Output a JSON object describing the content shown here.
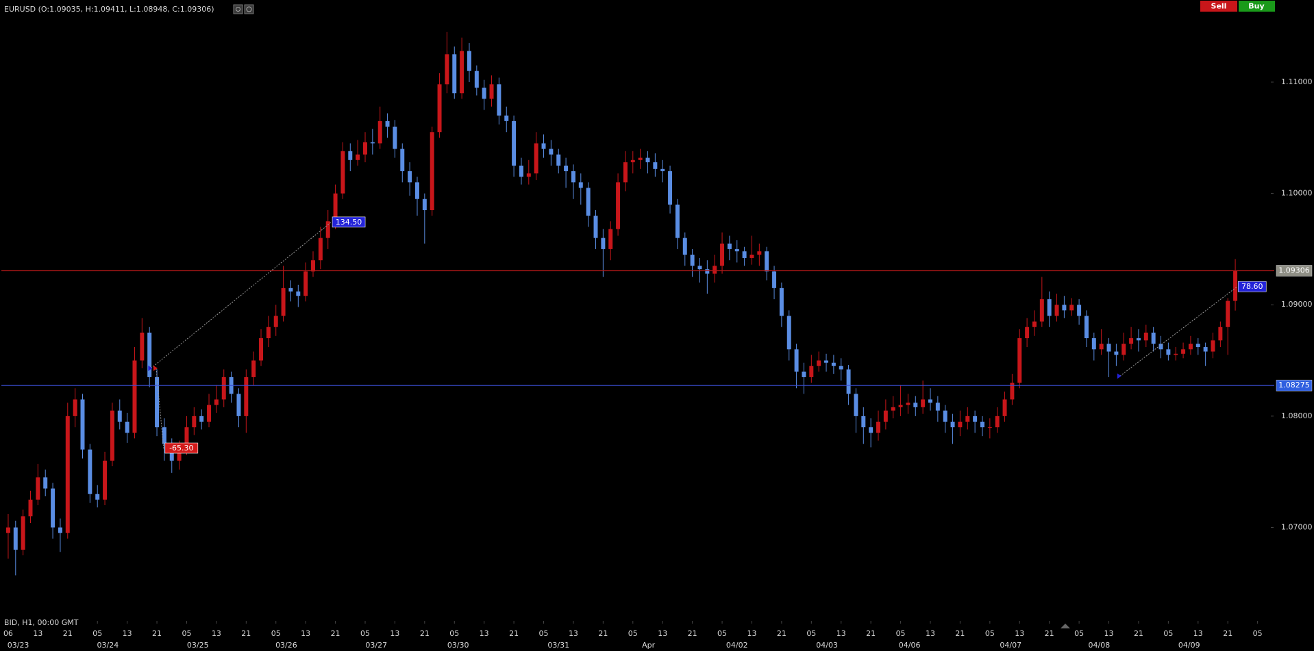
{
  "chart_data": {
    "type": "candlestick",
    "title": "EURUSD (O:1.09035, H:1.09411, L:1.08948, C:1.09306)",
    "footer": "BID, H1, 00:00 GMT",
    "buttons": {
      "sell": "Sell",
      "buy": "Buy"
    },
    "up_color": "#c8161a",
    "down_color": "#5a8de3",
    "open": [
      1.0695,
      1.07,
      1.068,
      1.071,
      1.0725,
      1.0745,
      1.0735,
      1.07,
      1.0695,
      1.08,
      1.0815,
      1.077,
      1.073,
      1.0725,
      1.076,
      1.0805,
      1.0795,
      1.0785,
      1.085,
      1.0875,
      1.0835,
      1.079,
      1.0775,
      1.076,
      1.077,
      1.079,
      1.08,
      1.0795,
      1.081,
      1.0815,
      1.0835,
      1.082,
      1.08,
      1.0835,
      1.085,
      1.087,
      1.088,
      1.089,
      1.0915,
      1.0912,
      1.0908,
      1.093,
      1.094,
      1.096,
      1.0975,
      1.1,
      1.1038,
      1.103,
      1.1035,
      1.1046,
      1.1045,
      1.1065,
      1.106,
      1.104,
      1.102,
      1.101,
      1.0995,
      1.0985,
      1.1055,
      1.1098,
      1.1125,
      1.109,
      1.1128,
      1.111,
      1.1095,
      1.1085,
      1.1098,
      1.107,
      1.1065,
      1.1025,
      1.1015,
      1.1018,
      1.1045,
      1.104,
      1.1035,
      1.1025,
      1.102,
      1.101,
      1.1005,
      1.098,
      1.096,
      1.095,
      1.0968,
      1.101,
      1.1028,
      1.103,
      1.1032,
      1.1028,
      1.1022,
      1.102,
      1.099,
      1.096,
      1.0945,
      1.0935,
      1.0932,
      1.0928,
      1.0935,
      1.0955,
      1.095,
      1.0948,
      1.0942,
      1.0945,
      1.0948,
      1.093,
      1.0915,
      1.089,
      1.086,
      1.084,
      1.0835,
      1.0845,
      1.085,
      1.0848,
      1.0845,
      1.0842,
      1.082,
      1.08,
      1.079,
      1.0785,
      1.0795,
      1.0805,
      1.0808,
      1.081,
      1.0812,
      1.0808,
      1.0815,
      1.0812,
      1.0805,
      1.0795,
      1.079,
      1.0795,
      1.08,
      1.0795,
      1.079,
      1.079,
      1.08,
      1.0815,
      1.083,
      1.087,
      1.088,
      1.0885,
      1.0905,
      1.089,
      1.09,
      1.0895,
      1.09,
      1.089,
      1.087,
      1.086,
      1.0865,
      1.0858,
      1.0855,
      1.0865,
      1.087,
      1.0868,
      1.0875,
      1.0865,
      1.086,
      1.0855,
      1.0856,
      1.086,
      1.0865,
      1.0862,
      1.0858,
      1.0868,
      1.088,
      1.09035
    ],
    "high": [
      1.0712,
      1.0706,
      1.0716,
      1.0733,
      1.0757,
      1.0752,
      1.074,
      1.0708,
      1.0812,
      1.0825,
      1.082,
      1.0775,
      1.0738,
      1.0768,
      1.0812,
      1.0815,
      1.0803,
      1.0862,
      1.0888,
      1.088,
      1.0842,
      1.0798,
      1.078,
      1.0778,
      1.08,
      1.0808,
      1.0806,
      1.082,
      1.0828,
      1.0842,
      1.084,
      1.0825,
      1.0842,
      1.0858,
      1.0878,
      1.089,
      1.09,
      1.0935,
      1.0922,
      1.0918,
      1.0938,
      1.0948,
      1.097,
      1.0985,
      1.1008,
      1.1046,
      1.1045,
      1.1048,
      1.1055,
      1.1058,
      1.1078,
      1.1072,
      1.1066,
      1.1045,
      1.1028,
      1.1015,
      1.1,
      1.106,
      1.1108,
      1.1145,
      1.1132,
      1.114,
      1.1135,
      1.1115,
      1.1102,
      1.1106,
      1.1104,
      1.1078,
      1.107,
      1.1032,
      1.103,
      1.1055,
      1.1053,
      1.1048,
      1.104,
      1.1032,
      1.1026,
      1.1018,
      1.101,
      1.0985,
      1.0968,
      1.0975,
      1.1018,
      1.1038,
      1.1038,
      1.104,
      1.1038,
      1.1036,
      1.103,
      1.1025,
      1.0995,
      1.0965,
      1.095,
      1.0942,
      1.094,
      1.0945,
      1.0965,
      1.0962,
      1.0958,
      1.0952,
      1.0962,
      1.0955,
      1.0952,
      1.0935,
      1.092,
      1.0895,
      1.0865,
      1.0848,
      1.0855,
      1.0858,
      1.0856,
      1.0855,
      1.0852,
      1.0846,
      1.0825,
      1.0808,
      1.0798,
      1.0805,
      1.0815,
      1.0818,
      1.0828,
      1.082,
      1.0818,
      1.0832,
      1.0825,
      1.0818,
      1.081,
      1.0802,
      1.0805,
      1.0808,
      1.0805,
      1.08,
      1.0798,
      1.0808,
      1.0822,
      1.0838,
      1.0878,
      1.0888,
      1.0895,
      1.0925,
      1.0912,
      1.091,
      1.0908,
      1.0906,
      1.0905,
      1.0895,
      1.0875,
      1.0878,
      1.087,
      1.0865,
      1.0875,
      1.088,
      1.0878,
      1.0882,
      1.088,
      1.0872,
      1.0866,
      1.0862,
      1.0866,
      1.0872,
      1.087,
      1.0866,
      1.0875,
      1.0885,
      1.0906,
      1.09411
    ],
    "low": [
      1.0672,
      1.0657,
      1.0675,
      1.0704,
      1.072,
      1.0728,
      1.069,
      1.0678,
      1.069,
      1.079,
      1.0762,
      1.0722,
      1.0718,
      1.072,
      1.0755,
      1.0788,
      1.0776,
      1.078,
      1.0843,
      1.0826,
      1.0782,
      1.076,
      1.0749,
      1.0752,
      1.0765,
      1.0783,
      1.0788,
      1.079,
      1.0803,
      1.0808,
      1.0812,
      1.079,
      1.0785,
      1.0828,
      1.0845,
      1.0862,
      1.0872,
      1.0885,
      1.0903,
      1.0898,
      1.0903,
      1.0925,
      1.0932,
      1.095,
      1.0968,
      1.0995,
      1.102,
      1.1025,
      1.1028,
      1.1035,
      1.104,
      1.105,
      1.1032,
      1.101,
      1.0998,
      1.098,
      1.0955,
      1.098,
      1.105,
      1.109,
      1.1085,
      1.1085,
      1.11,
      1.1088,
      1.1075,
      1.1078,
      1.1062,
      1.1055,
      1.1015,
      1.1008,
      1.1008,
      1.1012,
      1.1032,
      1.1025,
      1.1018,
      1.1005,
      1.0995,
      1.099,
      1.097,
      1.095,
      1.0925,
      1.094,
      1.0962,
      1.1002,
      1.1018,
      1.1022,
      1.1018,
      1.1015,
      1.101,
      1.0982,
      1.095,
      1.0935,
      1.0925,
      1.092,
      1.091,
      1.092,
      1.0928,
      1.094,
      1.0938,
      1.0935,
      1.0936,
      1.0935,
      1.0922,
      1.0905,
      1.088,
      1.085,
      1.0825,
      1.082,
      1.083,
      1.084,
      1.084,
      1.0838,
      1.0832,
      1.081,
      1.0785,
      1.0775,
      1.0772,
      1.0778,
      1.0788,
      1.0798,
      1.08,
      1.0802,
      1.08,
      1.0802,
      1.0805,
      1.0795,
      1.0785,
      1.0775,
      1.0782,
      1.0788,
      1.0785,
      1.0782,
      1.078,
      1.0785,
      1.0795,
      1.081,
      1.0825,
      1.0862,
      1.0872,
      1.088,
      1.088,
      1.0885,
      1.0888,
      1.089,
      1.0882,
      1.0862,
      1.085,
      1.0855,
      1.0835,
      1.0845,
      1.085,
      1.086,
      1.0858,
      1.0862,
      1.0858,
      1.0852,
      1.085,
      1.085,
      1.0852,
      1.0855,
      1.0855,
      1.0845,
      1.0852,
      1.0862,
      1.0855,
      1.08948
    ],
    "close": [
      1.07,
      1.068,
      1.071,
      1.0725,
      1.0745,
      1.0735,
      1.07,
      1.0695,
      1.08,
      1.0815,
      1.077,
      1.073,
      1.0725,
      1.076,
      1.0805,
      1.0795,
      1.0785,
      1.085,
      1.0875,
      1.0835,
      1.079,
      1.0775,
      1.076,
      1.077,
      1.079,
      1.08,
      1.0795,
      1.081,
      1.0815,
      1.0835,
      1.082,
      1.08,
      1.0835,
      1.085,
      1.087,
      1.088,
      1.089,
      1.0915,
      1.0912,
      1.0908,
      1.093,
      1.094,
      1.096,
      1.0975,
      1.1,
      1.1038,
      1.103,
      1.1035,
      1.1046,
      1.1045,
      1.1065,
      1.106,
      1.104,
      1.102,
      1.101,
      1.0995,
      1.0985,
      1.1055,
      1.1098,
      1.1125,
      1.109,
      1.1128,
      1.111,
      1.1095,
      1.1085,
      1.1098,
      1.107,
      1.1065,
      1.1025,
      1.1015,
      1.1018,
      1.1045,
      1.104,
      1.1035,
      1.1025,
      1.102,
      1.101,
      1.1005,
      1.098,
      1.096,
      1.095,
      1.0968,
      1.101,
      1.1028,
      1.103,
      1.1032,
      1.1028,
      1.1022,
      1.102,
      1.099,
      1.096,
      1.0945,
      1.0935,
      1.0932,
      1.0928,
      1.0935,
      1.0955,
      1.095,
      1.0948,
      1.0942,
      1.0945,
      1.0948,
      1.093,
      1.0915,
      1.089,
      1.086,
      1.084,
      1.0835,
      1.0845,
      1.085,
      1.0848,
      1.0845,
      1.0842,
      1.082,
      1.08,
      1.079,
      1.0785,
      1.0795,
      1.0805,
      1.0808,
      1.081,
      1.0812,
      1.0808,
      1.0815,
      1.0812,
      1.0805,
      1.0795,
      1.079,
      1.0795,
      1.08,
      1.0795,
      1.079,
      1.079,
      1.08,
      1.0815,
      1.083,
      1.087,
      1.088,
      1.0885,
      1.0905,
      1.089,
      1.09,
      1.0895,
      1.09,
      1.089,
      1.087,
      1.086,
      1.0865,
      1.0858,
      1.0855,
      1.0865,
      1.087,
      1.0868,
      1.0875,
      1.0865,
      1.086,
      1.0855,
      1.0856,
      1.086,
      1.0865,
      1.0862,
      1.0858,
      1.0868,
      1.088,
      1.09035,
      1.09306
    ],
    "xlim": [
      -1.1,
      169.6
    ],
    "ylim": [
      1.0621,
      1.1159
    ],
    "yticks": [
      {
        "value": 1.07,
        "label": "1.07000"
      },
      {
        "value": 1.08,
        "label": "1.08000"
      },
      {
        "value": 1.09,
        "label": "1.09000"
      },
      {
        "value": 1.1,
        "label": "1.10000"
      },
      {
        "value": 1.11,
        "label": "1.11000"
      }
    ],
    "xticks": [
      {
        "value": 0,
        "label": "06"
      },
      {
        "value": 4,
        "label": "13"
      },
      {
        "value": 8,
        "label": "21"
      },
      {
        "value": 12,
        "label": "05"
      },
      {
        "value": 16,
        "label": "13"
      },
      {
        "value": 20,
        "label": "21"
      },
      {
        "value": 24,
        "label": "05"
      },
      {
        "value": 28,
        "label": "13"
      },
      {
        "value": 32,
        "label": "21"
      },
      {
        "value": 36,
        "label": "05"
      },
      {
        "value": 40,
        "label": "13"
      },
      {
        "value": 44,
        "label": "21"
      },
      {
        "value": 48,
        "label": "05"
      },
      {
        "value": 52,
        "label": "13"
      },
      {
        "value": 56,
        "label": "21"
      },
      {
        "value": 60,
        "label": "05"
      },
      {
        "value": 64,
        "label": "13"
      },
      {
        "value": 68,
        "label": "21"
      },
      {
        "value": 72,
        "label": "05"
      },
      {
        "value": 76,
        "label": "13"
      },
      {
        "value": 80,
        "label": "21"
      },
      {
        "value": 84,
        "label": "05"
      },
      {
        "value": 88,
        "label": "13"
      },
      {
        "value": 92,
        "label": "21"
      },
      {
        "value": 96,
        "label": "05"
      },
      {
        "value": 100,
        "label": "13"
      },
      {
        "value": 104,
        "label": "21"
      },
      {
        "value": 108,
        "label": "05"
      },
      {
        "value": 112,
        "label": "13"
      },
      {
        "value": 116,
        "label": "21"
      },
      {
        "value": 120,
        "label": "05"
      },
      {
        "value": 124,
        "label": "13"
      },
      {
        "value": 128,
        "label": "21"
      },
      {
        "value": 132,
        "label": "05"
      },
      {
        "value": 136,
        "label": "13"
      },
      {
        "value": 140,
        "label": "21"
      },
      {
        "value": 144,
        "label": "05"
      },
      {
        "value": 148,
        "label": "13"
      },
      {
        "value": 152,
        "label": "21"
      },
      {
        "value": 156,
        "label": "05"
      },
      {
        "value": 160,
        "label": "13"
      },
      {
        "value": 164,
        "label": "21"
      },
      {
        "value": 168,
        "label": "05"
      }
    ],
    "date_labels": [
      {
        "value": 1.35,
        "label": "03/23"
      },
      {
        "value": 13.4,
        "label": "03/24"
      },
      {
        "value": 25.5,
        "label": "03/25"
      },
      {
        "value": 37.4,
        "label": "03/26"
      },
      {
        "value": 49.5,
        "label": "03/27"
      },
      {
        "value": 60.5,
        "label": "03/30"
      },
      {
        "value": 74.0,
        "label": "03/31"
      },
      {
        "value": 86.1,
        "label": "Apr"
      },
      {
        "value": 98.0,
        "label": "04/02"
      },
      {
        "value": 110.1,
        "label": "04/03"
      },
      {
        "value": 121.2,
        "label": "04/06"
      },
      {
        "value": 134.8,
        "label": "04/07"
      },
      {
        "value": 146.7,
        "label": "04/08"
      },
      {
        "value": 158.8,
        "label": "04/09"
      }
    ],
    "hlines": [
      {
        "value": 1.09306,
        "color": "#b01818",
        "tag_color": "#8f8f85"
      },
      {
        "value": 1.08275,
        "color": "#3a4fd6",
        "tag_color": "#2f5fe0"
      }
    ],
    "annotations": [
      {
        "label": "134.50",
        "from": [
          19.2,
          1.0843
        ],
        "to": [
          43.4,
          1.0974
        ],
        "color": "#2323d8"
      },
      {
        "label": "-65.30",
        "from": [
          19.9,
          1.0843
        ],
        "to": [
          20.9,
          1.0771
        ],
        "color": "#d21a1a"
      },
      {
        "label": "78.60",
        "from": [
          149.5,
          1.0836
        ],
        "to": [
          165.2,
          1.0916
        ],
        "color": "#2323d8"
      }
    ]
  }
}
